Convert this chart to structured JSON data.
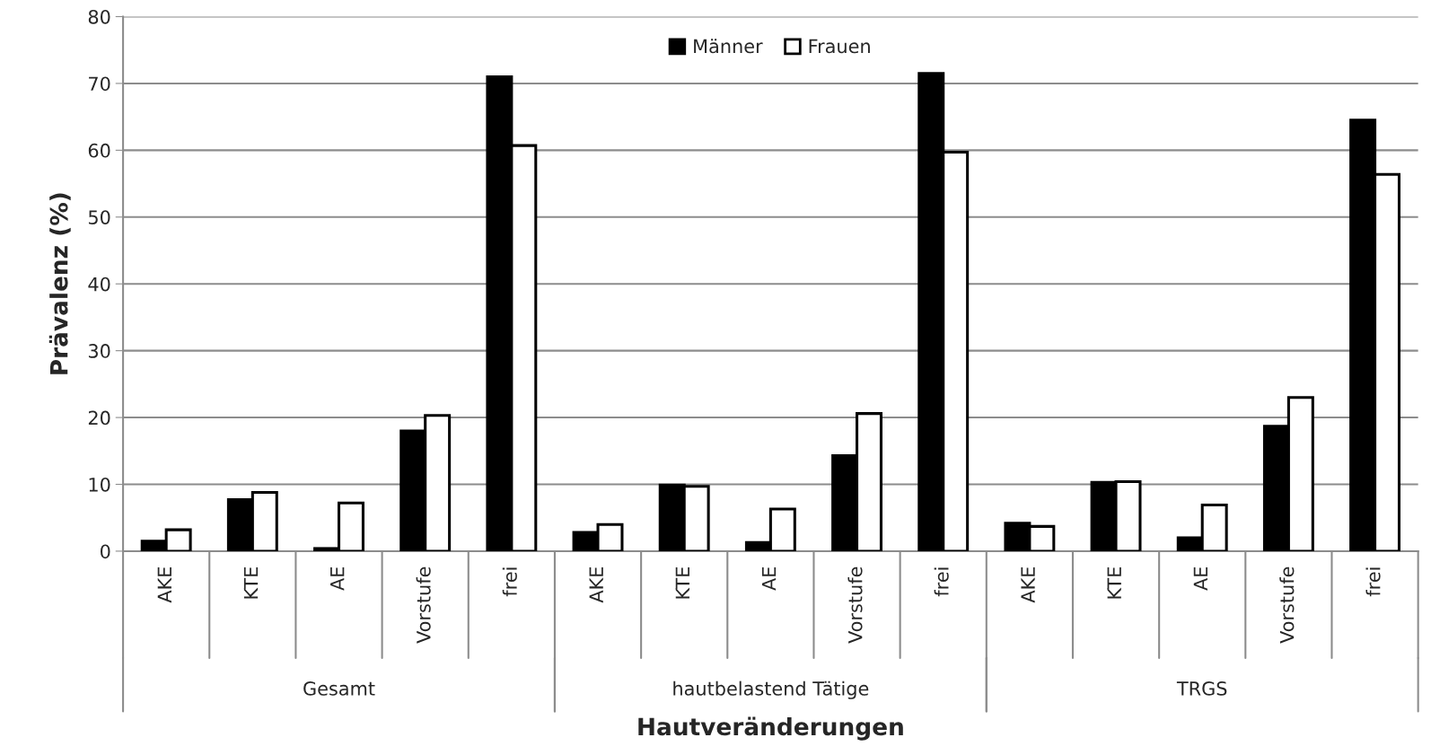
{
  "chart_data": {
    "type": "bar",
    "xlabel": "Hautveränderungen",
    "ylabel": "Prävalenz (%)",
    "categories": [
      "AKE",
      "KTE",
      "AE",
      "Vorstufe",
      "frei",
      "AKE",
      "KTE",
      "AE",
      "Vorstufe",
      "frei",
      "AKE",
      "KTE",
      "AE",
      "Vorstufe",
      "frei"
    ],
    "series": [
      {
        "name": "Männer",
        "color": "#000000",
        "values": [
          1.5,
          7.7,
          0.4,
          18.0,
          71.0,
          2.8,
          9.9,
          1.3,
          14.3,
          71.5,
          4.2,
          10.3,
          2.0,
          18.7,
          64.5
        ]
      },
      {
        "name": "Frauen",
        "color": "#ffffff",
        "values": [
          3.2,
          8.8,
          7.2,
          20.3,
          60.7,
          4.0,
          9.7,
          6.3,
          20.6,
          59.7,
          3.7,
          10.4,
          6.9,
          23.0,
          56.4
        ]
      }
    ],
    "annotations": [
      "Gesamt",
      "hautbelastend Tätige",
      "TRGS"
    ],
    "ylim": [
      0,
      80
    ],
    "yticks": [
      0,
      10,
      20,
      30,
      40,
      50,
      60,
      70,
      80
    ],
    "grid": "y",
    "legend": "top"
  }
}
